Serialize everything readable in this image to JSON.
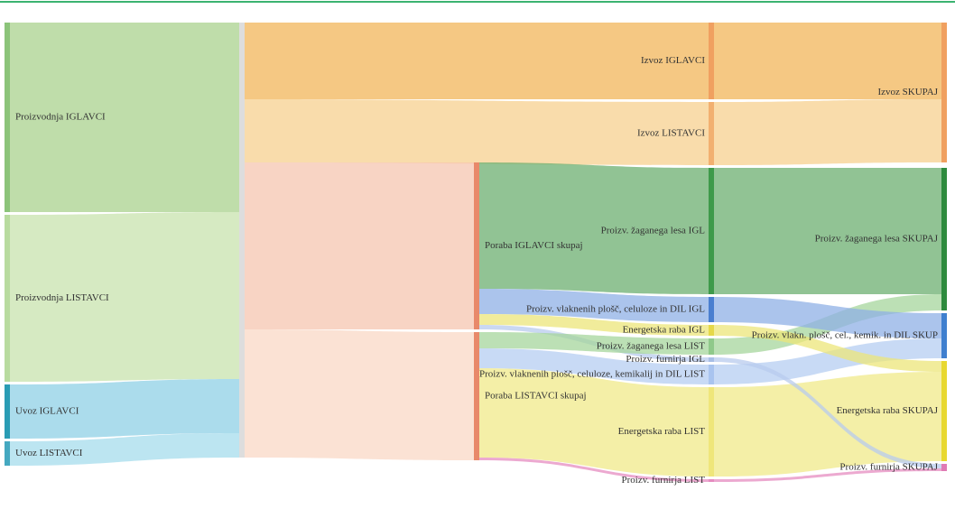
{
  "chart_data": {
    "type": "sankey",
    "nodes": [
      {
        "label": "Proizvodnja IGLAVCI",
        "column": 0,
        "color": "#8cc47a"
      },
      {
        "label": "Proizvodnja LISTAVCI",
        "column": 0,
        "color": "#b8db9f"
      },
      {
        "label": "Uvoz IGLAVCI",
        "column": 0,
        "color": "#2a9cb4"
      },
      {
        "label": "Uvoz LISTAVCI",
        "column": 0,
        "color": "#45a8c0"
      },
      {
        "column": 1,
        "color": "#dddddd"
      },
      {
        "label": "Izvoz IGLAVCI",
        "column": 3,
        "color": "#f0a060"
      },
      {
        "label": "Izvoz LISTAVCI",
        "column": 3,
        "color": "#f2b070"
      },
      {
        "label": "Poraba IGLAVCI skupaj",
        "column": 2,
        "color": "#e8896a"
      },
      {
        "label": "Poraba LISTAVCI skupaj",
        "column": 2,
        "color": "#e8896a"
      },
      {
        "label": "Proizv. žaganega lesa IGL",
        "column": 3,
        "color": "#3e9a4a"
      },
      {
        "label": "Proizv. vlaknenih plošč, celuloze in DIL IGL",
        "column": 3,
        "color": "#4a7fd0"
      },
      {
        "label": "Energetska raba IGL",
        "column": 3,
        "color": "#e5d84a"
      },
      {
        "label": "Proizv. žaganega lesa LIST",
        "column": 3,
        "color": "#8fc98a"
      },
      {
        "label": "Proizv. furnirja IGL",
        "column": 3,
        "color": "#a8bfe6"
      },
      {
        "label": "Proizv. vlaknenih plošč, celuloze, kemikalij in DIL LIST",
        "column": 3,
        "color": "#a9c4ef"
      },
      {
        "label": "Energetska raba LIST",
        "column": 3,
        "color": "#efe67a"
      },
      {
        "label": "Proizv. furnirja LIST",
        "column": 3,
        "color": "#e58cc0"
      },
      {
        "label": "Izvoz SKUPAJ",
        "column": 4,
        "color": "#f0a060"
      },
      {
        "label": "Proizv. žaganega lesa SKUPAJ",
        "column": 4,
        "color": "#2e8b3e"
      },
      {
        "label": "Proizv. vlakn. plošč, cel., kemik. in DIL SKUP",
        "column": 4,
        "color": "#3f7fcf"
      },
      {
        "label": "Energetska raba SKUPAJ",
        "column": 4,
        "color": "#e8d830"
      },
      {
        "label": "Proizv. furnirja SKUPAJ",
        "column": 4,
        "color": "#e07bb5"
      }
    ],
    "links": [
      {
        "source": 0,
        "target": 4,
        "value": 210,
        "color": "#a9d18e"
      },
      {
        "source": 1,
        "target": 4,
        "value": 185,
        "color": "#c8e3ae"
      },
      {
        "source": 2,
        "target": 4,
        "value": 60,
        "color": "#8fd0e6"
      },
      {
        "source": 3,
        "target": 4,
        "value": 27,
        "color": "#a6dcec"
      },
      {
        "source": 4,
        "target": 5,
        "value": 85,
        "color": "#f2b65a"
      },
      {
        "source": 4,
        "target": 6,
        "value": 70,
        "color": "#f7d08f"
      },
      {
        "source": 4,
        "target": 7,
        "value": 185,
        "color": "#f5c6b0"
      },
      {
        "source": 4,
        "target": 8,
        "value": 142,
        "color": "#f9d8c6"
      },
      {
        "source": 7,
        "target": 9,
        "value": 140,
        "color": "#6caf70"
      },
      {
        "source": 7,
        "target": 10,
        "value": 28,
        "color": "#8fb0e6"
      },
      {
        "source": 7,
        "target": 11,
        "value": 12,
        "color": "#ece67a"
      },
      {
        "source": 7,
        "target": 13,
        "value": 5,
        "color": "#b8cbee"
      },
      {
        "source": 8,
        "target": 12,
        "value": 18,
        "color": "#a5d69c"
      },
      {
        "source": 8,
        "target": 14,
        "value": 22,
        "color": "#b5cdf2"
      },
      {
        "source": 8,
        "target": 15,
        "value": 99,
        "color": "#f0ea8a"
      },
      {
        "source": 8,
        "target": 16,
        "value": 3,
        "color": "#e58cc0"
      },
      {
        "source": 5,
        "target": 17,
        "value": 85,
        "color": "#f2b65a"
      },
      {
        "source": 6,
        "target": 17,
        "value": 70,
        "color": "#f7d08f"
      },
      {
        "source": 9,
        "target": 18,
        "value": 140,
        "color": "#6caf70"
      },
      {
        "source": 12,
        "target": 18,
        "value": 18,
        "color": "#a5d69c"
      },
      {
        "source": 10,
        "target": 19,
        "value": 28,
        "color": "#8fb0e6"
      },
      {
        "source": 14,
        "target": 19,
        "value": 22,
        "color": "#b5cdf2"
      },
      {
        "source": 11,
        "target": 20,
        "value": 12,
        "color": "#ece67a"
      },
      {
        "source": 15,
        "target": 20,
        "value": 99,
        "color": "#f0ea8a"
      },
      {
        "source": 13,
        "target": 21,
        "value": 5,
        "color": "#b8cbee"
      },
      {
        "source": 16,
        "target": 21,
        "value": 3,
        "color": "#e58cc0"
      }
    ]
  }
}
